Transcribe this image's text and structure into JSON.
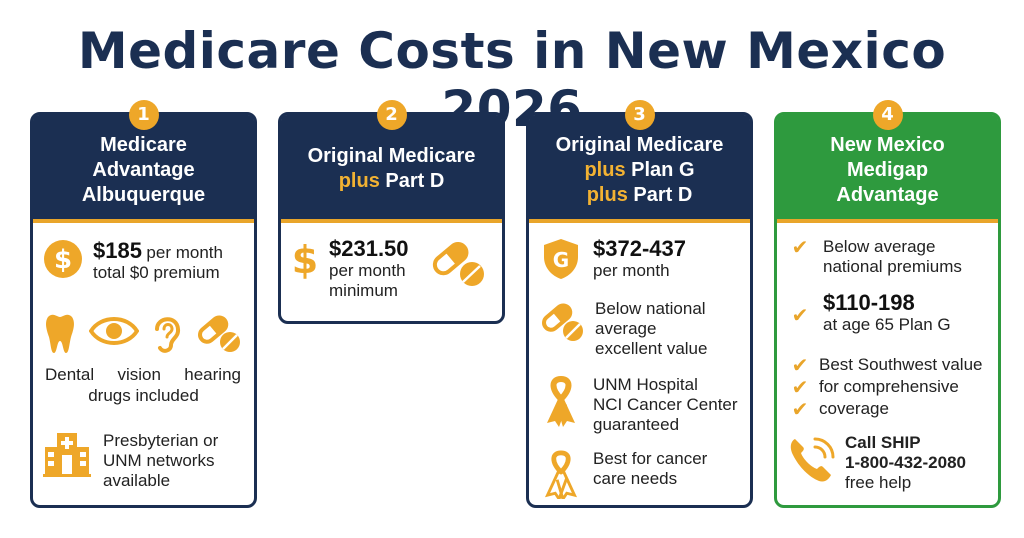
{
  "title": "Medicare Costs in New Mexico 2026",
  "colors": {
    "navy": "#1b2f52",
    "gold": "#e9a52a",
    "green": "#2e9a3e"
  },
  "cards": [
    {
      "number": "1",
      "header": [
        "Medicare",
        "Advantage",
        "Albuquerque"
      ],
      "price": "$185",
      "price_suffix": "per month",
      "price_sub": "total $0 premium",
      "icons": [
        "tooth-icon",
        "eye-icon",
        "ear-icon",
        "pill-icon"
      ],
      "benefits_line1": [
        "Dental",
        "vision",
        "hearing"
      ],
      "benefits_line2": "drugs included",
      "network": [
        "Presbyterian or",
        "UNM networks",
        "available"
      ]
    },
    {
      "number": "2",
      "header_line1": "Original Medicare",
      "header_plus": "plus",
      "header_line2_rest": "Part D",
      "price": "$231.50",
      "price_sub1": "per month",
      "price_sub2": "minimum"
    },
    {
      "number": "3",
      "header_line1": "Original Medicare",
      "header_plus": "plus",
      "header_line2_rest": "Plan G",
      "header_line3_rest": "Part D",
      "shield_letter": "G",
      "price": "$372-437",
      "price_sub": "per month",
      "value": [
        "Below national",
        "average",
        "excellent value"
      ],
      "hospital": [
        "UNM Hospital",
        "NCI Cancer Center",
        "guaranteed"
      ],
      "cancer": [
        "Best for cancer",
        "care needs"
      ]
    },
    {
      "number": "4",
      "header": [
        "New Mexico",
        "Medigap",
        "Advantage"
      ],
      "premiums": [
        "Below average",
        "national premiums"
      ],
      "price": "$110-198",
      "price_sub": "at age 65 Plan G",
      "value_items": [
        "Best Southwest value",
        "for comprehensive",
        "coverage"
      ],
      "call": "Call SHIP",
      "phone": "1-800-432-2080",
      "help": "free help"
    }
  ]
}
